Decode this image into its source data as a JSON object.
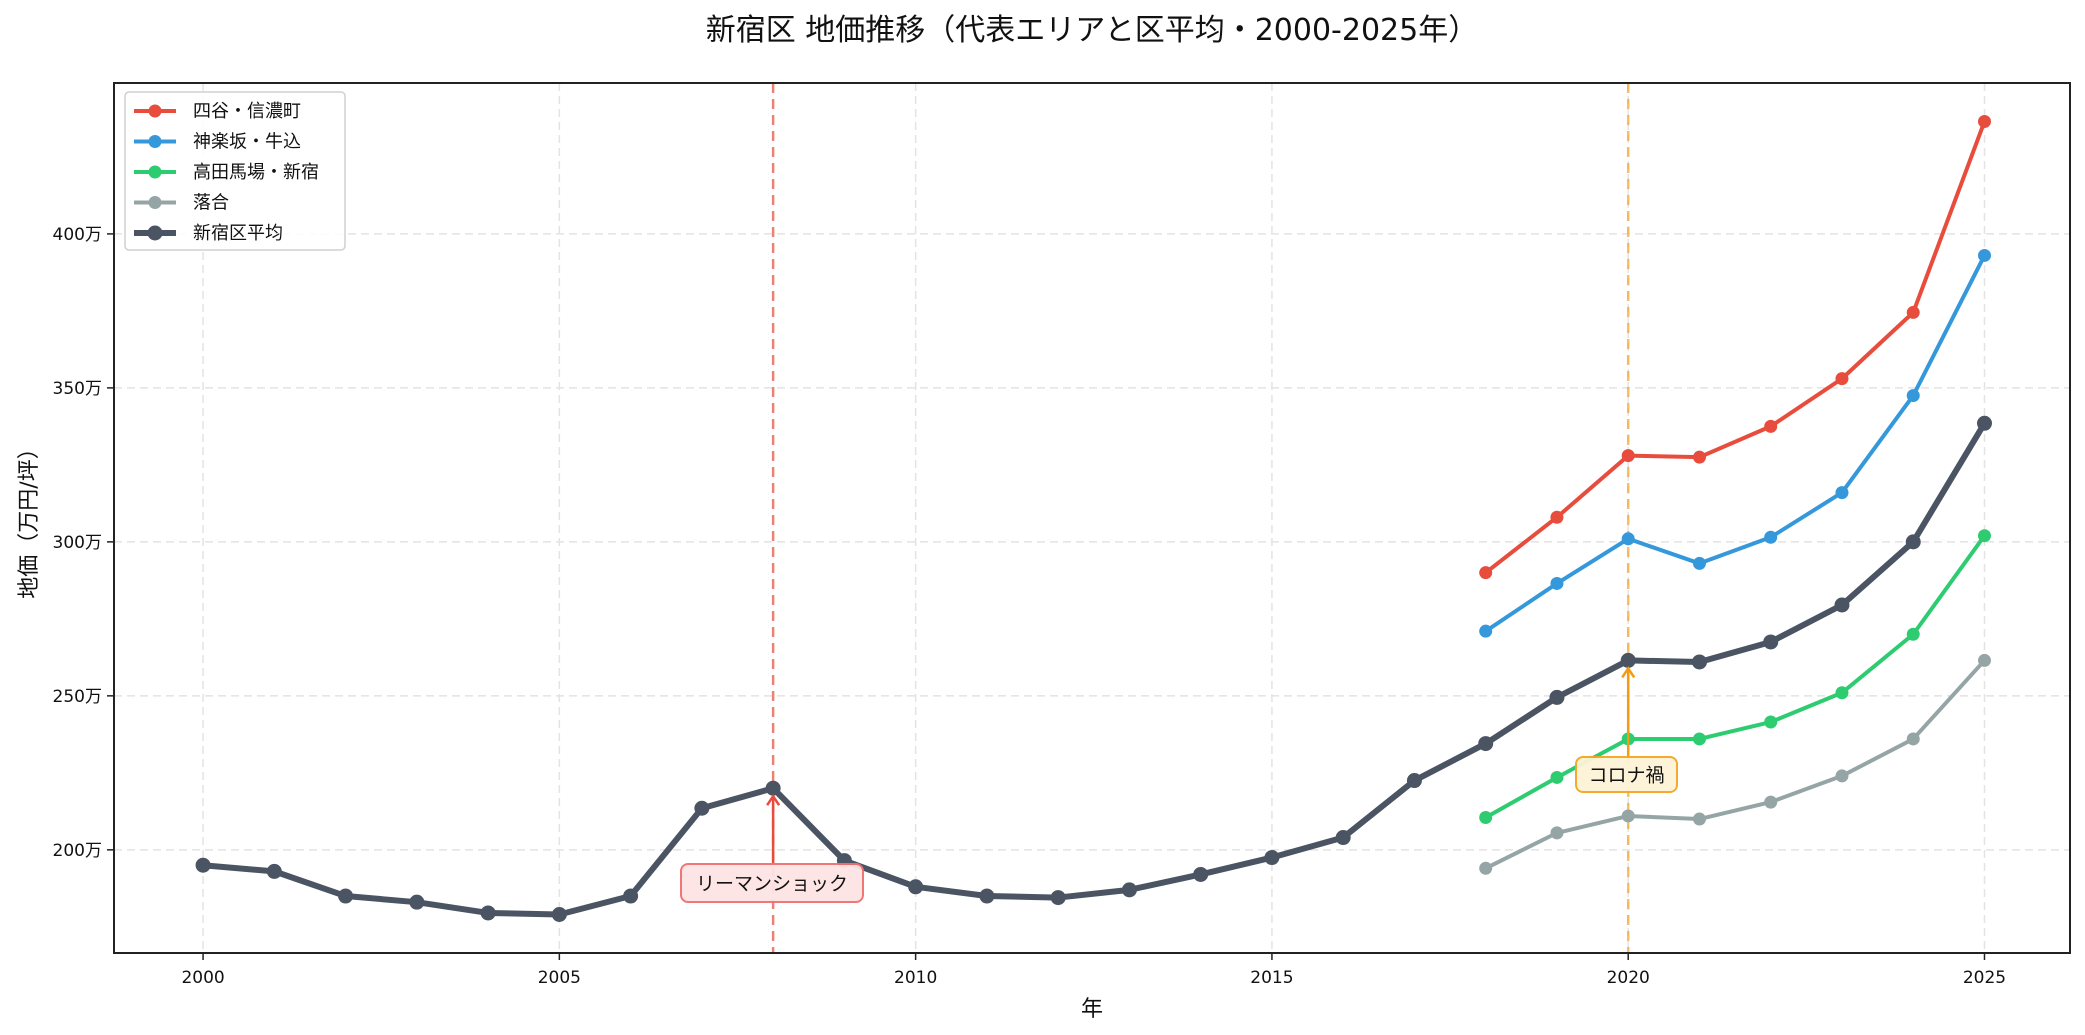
{
  "chart_data": {
    "type": "line",
    "title": "新宿区 地価推移（代表エリアと区平均・2000-2025年）",
    "xlabel": "年",
    "ylabel": "地価（万円/坪）",
    "xlim": [
      1998.75,
      2026.2
    ],
    "ylim": [
      166.5,
      449
    ],
    "grid": true,
    "legend_position": "upper left",
    "x_ticks": [
      2000,
      2005,
      2010,
      2015,
      2020,
      2025
    ],
    "x_tick_labels": [
      "2000",
      "2005",
      "2010",
      "2015",
      "2020",
      "2025"
    ],
    "y_ticks": [
      200,
      250,
      300,
      350,
      400
    ],
    "y_tick_labels": [
      "200万",
      "250万",
      "300万",
      "350万",
      "400万"
    ],
    "series": [
      {
        "name": "四谷・信濃町",
        "color": "#e74c3c",
        "linewidth": 4,
        "x": [
          2018,
          2019,
          2020,
          2021,
          2022,
          2023,
          2024,
          2025
        ],
        "values": [
          290,
          308,
          328,
          327.5,
          337.5,
          353,
          374.5,
          436.5
        ]
      },
      {
        "name": "神楽坂・牛込",
        "color": "#3498db",
        "linewidth": 4,
        "x": [
          2018,
          2019,
          2020,
          2021,
          2022,
          2023,
          2024,
          2025
        ],
        "values": [
          271,
          286.5,
          301,
          293,
          301.5,
          316,
          347.5,
          393
        ]
      },
      {
        "name": "高田馬場・新宿",
        "color": "#2ecc71",
        "linewidth": 4,
        "x": [
          2018,
          2019,
          2020,
          2021,
          2022,
          2023,
          2024,
          2025
        ],
        "values": [
          210.5,
          223.5,
          236,
          236,
          241.5,
          251,
          270,
          302
        ]
      },
      {
        "name": "落合",
        "color": "#95a5a6",
        "linewidth": 4,
        "x": [
          2018,
          2019,
          2020,
          2021,
          2022,
          2023,
          2024,
          2025
        ],
        "values": [
          194,
          205.5,
          211,
          210,
          215.5,
          224,
          236,
          261.5
        ]
      },
      {
        "name": "新宿区平均",
        "color": "#4a5462",
        "linewidth": 6,
        "x": [
          2000,
          2001,
          2002,
          2003,
          2004,
          2005,
          2006,
          2007,
          2008,
          2009,
          2010,
          2011,
          2012,
          2013,
          2014,
          2015,
          2016,
          2017,
          2018,
          2019,
          2020,
          2021,
          2022,
          2023,
          2024,
          2025
        ],
        "values": [
          195,
          193,
          185,
          183,
          179.5,
          179,
          185,
          213.5,
          220,
          196.5,
          188,
          185,
          184.5,
          187,
          192,
          197.5,
          204,
          222.5,
          234.5,
          249.5,
          261.5,
          261,
          267.5,
          279.5,
          300,
          338.5
        ]
      }
    ],
    "annotations": [
      {
        "text": "リーマンショック",
        "x": 2008,
        "y": 220,
        "line_color": "#e74c3c",
        "box_fill": "#fde4e4",
        "box_edge": "#f07070",
        "arrow_color": "#e74c3c"
      },
      {
        "text": "コロナ禍",
        "x": 2020,
        "y": 261.5,
        "line_color": "#f5a623",
        "box_fill": "#fdf3d6",
        "box_edge": "#f5a623",
        "arrow_color": "#f39c12"
      }
    ]
  }
}
